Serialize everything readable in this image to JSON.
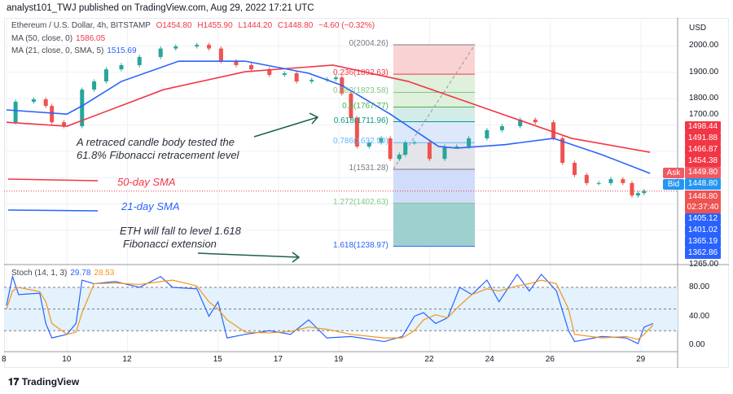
{
  "header": {
    "publisher": "analyst101_TWJ published on TradingView.com, Aug 29, 2022 17:21 UTC"
  },
  "legend": {
    "symbol": "Ethereum / U.S. Dollar, 4h, BITSTAMP",
    "open": "O1454.80",
    "high": "H1455.90",
    "low": "L1444.20",
    "close": "C1448.80",
    "change": "−4.60 (−0.32%)",
    "ma50_label": "MA (50, close, 0)",
    "ma50_value": "1586.05",
    "ma21_label": "MA (21, close, 0, SMA, 5)",
    "ma21_value": "1515.69",
    "stoch_label": "Stoch (14, 1, 3)",
    "stoch_k": "29.78",
    "stoch_d": "28.53"
  },
  "annotations": {
    "retrace_line1": "A retraced candle body tested the",
    "retrace_line2": "61.8% Fibonacci retracement level",
    "sma50": "50-day SMA",
    "sma21": "21-day SMA",
    "fall_line1": "ETH will fall to level  1.618",
    "fall_line2": "Fibonacci extension"
  },
  "fib_labels": [
    "0(2004.26)",
    "0.236(1892.63)",
    "0.382(1823.58)",
    "0.5(1767.77)",
    "0.618(1711.96)",
    "0.786(1632.50)",
    "1(1531.28)",
    "1.272(1402.63)",
    "1.618(1238.97)"
  ],
  "price_tags": {
    "upper": [
      "1498.44",
      "1491.88",
      "1466.87",
      "1454.38"
    ],
    "ask_label": "Ask",
    "ask": "1449.80",
    "bid_label": "Bid",
    "bid": "1448.80",
    "last": "1448.80",
    "countdown": "02:37:40",
    "lower": [
      "1405.12",
      "1401.02",
      "1365.19",
      "1362.86"
    ]
  },
  "footer": {
    "brand": "TradingView"
  },
  "colors": {
    "up": "#26a69a",
    "down": "#ef5350",
    "ma50": "#f23645",
    "ma21": "#2962ff",
    "stoch_k": "#2962ff",
    "stoch_d": "#f7931a"
  },
  "chart_data": {
    "type": "line",
    "title": "",
    "currency": "USD",
    "x_unit": "day of August 2022",
    "x_ticks": [
      "8",
      "10",
      "12",
      "15",
      "17",
      "19",
      "22",
      "24",
      "26",
      "29"
    ],
    "y_ticks": [
      "2000.00",
      "1900.00",
      "1800.00",
      "1700.00",
      "1265.00"
    ],
    "stoch_ticks": [
      "80.00",
      "40.00",
      "0.00"
    ],
    "price": {
      "t": [
        8,
        8.3,
        8.9,
        9.3,
        9.5,
        9.9,
        10.5,
        10.9,
        11.3,
        11.8,
        12.4,
        13.1,
        13.6,
        14.3,
        14.7,
        15.1,
        15.6,
        16.1,
        16.7,
        17.2,
        17.6,
        18.1,
        18.6,
        18.9,
        19.1,
        19.4,
        19.6,
        20.0,
        20.4,
        20.7,
        21.0,
        21.2,
        21.5,
        22.0,
        22.5,
        22.9,
        23.3,
        23.9,
        24.4,
        25.0,
        25.5,
        26.1,
        26.4,
        26.8,
        27.2,
        27.6,
        28.0,
        28.4,
        28.7,
        28.9,
        29.1
      ],
      "close": [
        1710,
        1788,
        1797,
        1772,
        1710,
        1695,
        1834,
        1865,
        1911,
        1927,
        1958,
        1990,
        1998,
        2004,
        1990,
        1942,
        1927,
        1911,
        1890,
        1896,
        1865,
        1871,
        1874,
        1880,
        1819,
        1726,
        1618,
        1633,
        1649,
        1571,
        1587,
        1633,
        1633,
        1571,
        1618,
        1618,
        1649,
        1680,
        1695,
        1720,
        1710,
        1649,
        1556,
        1510,
        1479,
        1479,
        1494,
        1479,
        1432,
        1441,
        1449
      ]
    },
    "ma50": {
      "t": [
        8,
        10,
        13.2,
        15.9,
        18.8,
        21.3,
        24,
        26.7,
        29.3
      ],
      "value": [
        1710,
        1695,
        1834,
        1902,
        1927,
        1865,
        1757,
        1649,
        1596
      ]
    },
    "ma21": {
      "t": [
        8,
        10,
        10.5,
        11.8,
        13.7,
        15.9,
        18,
        19.1,
        20.7,
        22.3,
        22.9,
        24.5,
        26.1,
        27.7,
        29.3
      ],
      "value": [
        1757,
        1741,
        1772,
        1865,
        1942,
        1942,
        1896,
        1850,
        1741,
        1618,
        1612,
        1625,
        1649,
        1587,
        1516
      ]
    },
    "fib": {
      "levels": [
        0,
        0.236,
        0.382,
        0.5,
        0.618,
        0.786,
        1,
        1.272,
        1.618
      ],
      "prices": [
        2004.26,
        1892.63,
        1823.58,
        1767.77,
        1711.96,
        1632.5,
        1531.28,
        1402.63,
        1238.97
      ],
      "t_start": 20.8,
      "t_end": 23.5
    },
    "stoch": {
      "t": [
        8,
        8.2,
        8.4,
        9.1,
        9.3,
        9.5,
        10,
        10.3,
        10.5,
        10.9,
        11.6,
        12.4,
        13.1,
        13.5,
        14.3,
        14.7,
        15,
        15.3,
        15.9,
        16.7,
        17.4,
        18,
        18.6,
        19.4,
        20.5,
        21.1,
        21.5,
        21.8,
        22.2,
        22.6,
        23,
        23.4,
        23.9,
        24.3,
        24.9,
        25.3,
        25.7,
        26.2,
        26.6,
        26.8,
        27.7,
        28.5,
        28.9,
        29.1,
        29.4
      ],
      "k": [
        55,
        95,
        70,
        72,
        30,
        10,
        15,
        30,
        90,
        85,
        88,
        80,
        95,
        80,
        78,
        40,
        60,
        10,
        15,
        20,
        15,
        35,
        10,
        12,
        5,
        12,
        40,
        45,
        30,
        38,
        80,
        70,
        90,
        60,
        98,
        75,
        98,
        75,
        20,
        5,
        12,
        10,
        2,
        25,
        30
      ],
      "d": [
        50,
        75,
        80,
        74,
        60,
        30,
        15,
        18,
        45,
        85,
        86,
        84,
        88,
        90,
        82,
        60,
        50,
        35,
        18,
        17,
        19,
        25,
        22,
        15,
        10,
        10,
        20,
        35,
        42,
        38,
        55,
        70,
        78,
        75,
        82,
        85,
        90,
        85,
        50,
        15,
        10,
        12,
        8,
        15,
        28
      ]
    }
  }
}
